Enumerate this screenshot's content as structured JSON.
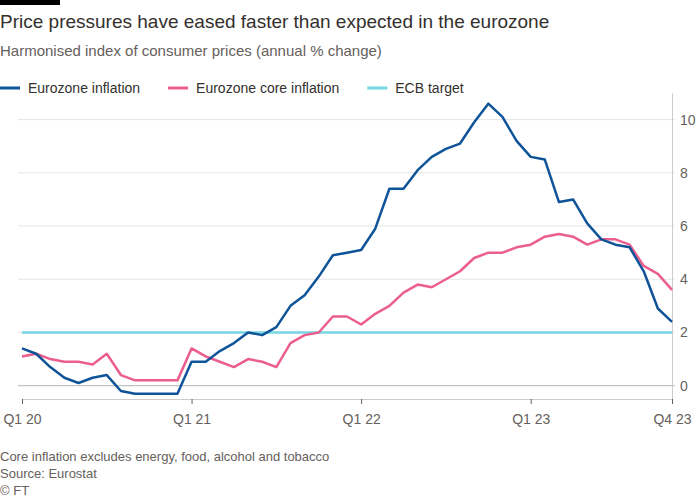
{
  "chart_data": {
    "type": "line",
    "title": "Price pressures have eased faster than expected in the eurozone",
    "subtitle": "Harmonised index of consumer prices (annual % change)",
    "notes": [
      "Core inflation excludes energy, food, alcohol and tobacco",
      "Source: Eurostat",
      "© FT"
    ],
    "categories": [
      "Q1 20",
      null,
      null,
      null,
      null,
      null,
      null,
      null,
      null,
      null,
      null,
      null,
      "Q1 21",
      null,
      null,
      null,
      null,
      null,
      null,
      null,
      null,
      null,
      null,
      null,
      "Q1 22",
      null,
      null,
      null,
      null,
      null,
      null,
      null,
      null,
      null,
      null,
      null,
      "Q1 23",
      null,
      null,
      null,
      null,
      null,
      null,
      null,
      null,
      null,
      "Q4 23"
    ],
    "series": [
      {
        "name": "Eurozone inflation",
        "color": "#0f5499",
        "values": [
          1.4,
          1.2,
          0.7,
          0.3,
          0.1,
          0.3,
          0.4,
          -0.2,
          -0.3,
          -0.3,
          -0.3,
          -0.3,
          0.9,
          0.9,
          1.3,
          1.6,
          2.0,
          1.9,
          2.2,
          3.0,
          3.4,
          4.1,
          4.9,
          5.0,
          5.1,
          5.9,
          7.4,
          7.4,
          8.1,
          8.6,
          8.9,
          9.1,
          9.9,
          10.6,
          10.1,
          9.2,
          8.6,
          8.5,
          6.9,
          7.0,
          6.1,
          5.5,
          5.3,
          5.2,
          4.3,
          2.9,
          2.4
        ]
      },
      {
        "name": "Eurozone core inflation",
        "color": "#eb5e8d",
        "values": [
          1.1,
          1.2,
          1.0,
          0.9,
          0.9,
          0.8,
          1.2,
          0.4,
          0.2,
          0.2,
          0.2,
          0.2,
          1.4,
          1.1,
          0.9,
          0.7,
          1.0,
          0.9,
          0.7,
          1.6,
          1.9,
          2.0,
          2.6,
          2.6,
          2.3,
          2.7,
          3.0,
          3.5,
          3.8,
          3.7,
          4.0,
          4.3,
          4.8,
          5.0,
          5.0,
          5.2,
          5.3,
          5.6,
          5.7,
          5.6,
          5.3,
          5.5,
          5.5,
          5.3,
          4.5,
          4.2,
          3.6
        ]
      },
      {
        "name": "ECB target",
        "color": "#76d6e4",
        "values": [
          2,
          2,
          2,
          2,
          2,
          2,
          2,
          2,
          2,
          2,
          2,
          2,
          2,
          2,
          2,
          2,
          2,
          2,
          2,
          2,
          2,
          2,
          2,
          2,
          2,
          2,
          2,
          2,
          2,
          2,
          2,
          2,
          2,
          2,
          2,
          2,
          2,
          2,
          2,
          2,
          2,
          2,
          2,
          2,
          2,
          2,
          2
        ]
      }
    ],
    "ylim": [
      -0.5,
      11
    ],
    "yticks": [
      0,
      2,
      4,
      6,
      8,
      10
    ],
    "grid": true,
    "legend": "top-left"
  }
}
